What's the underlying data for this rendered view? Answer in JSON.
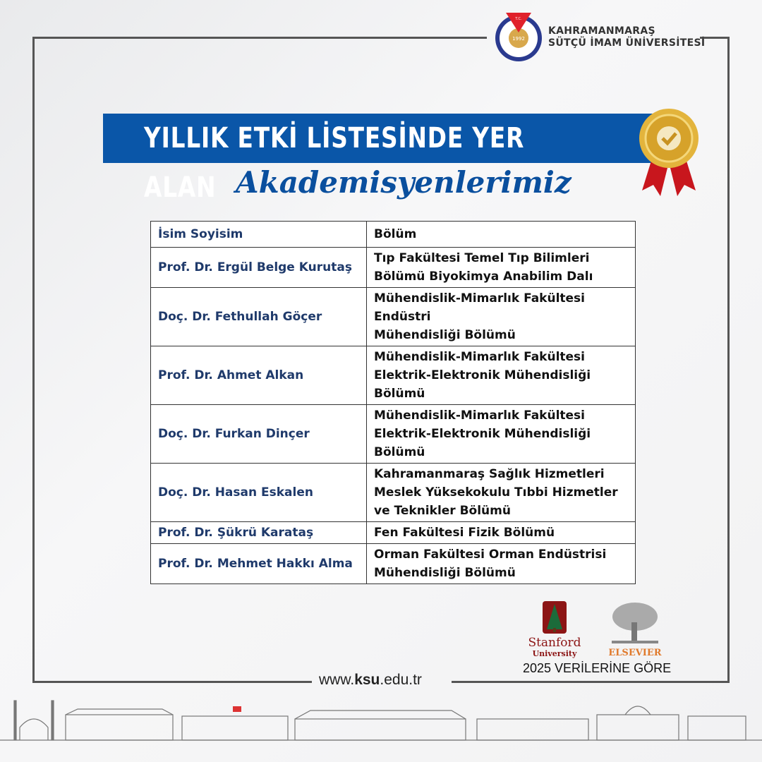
{
  "header": {
    "logo_text": [
      "T.C.",
      "1992",
      "KAHRAMANMARAŞ SÜTÇÜ İMAM ÜNİVERSİTESİ"
    ],
    "university_line1": "KAHRAMANMARAŞ",
    "university_line2": "SÜTÇÜ İMAM ÜNİVERSİTESİ"
  },
  "banner": {
    "title": "YILLIK ETKİ LİSTESİNDE YER ALAN",
    "subtitle": "Akademisyenlerimiz",
    "color": "#0a56a8"
  },
  "table": {
    "headers": [
      "İsim Soyisim",
      "Bölüm"
    ],
    "rows": [
      {
        "name": "Prof. Dr. Ergül Belge Kurutaş",
        "dept": [
          "Tıp Fakültesi Temel Tıp Bilimleri",
          "Bölümü Biyokimya Anabilim Dalı"
        ]
      },
      {
        "name": "Doç. Dr. Fethullah Göçer",
        "dept": [
          "Mühendislik-Mimarlık Fakültesi",
          "Endüstri",
          "Mühendisliği Bölümü"
        ]
      },
      {
        "name": "Prof. Dr. Ahmet Alkan",
        "dept": [
          "Mühendislik-Mimarlık Fakültesi",
          "Elektrik-Elektronik Mühendisliği",
          "Bölümü"
        ]
      },
      {
        "name": "Doç. Dr. Furkan Dinçer",
        "dept": [
          "Mühendislik-Mimarlık Fakültesi",
          "Elektrik-Elektronik Mühendisliği",
          "Bölümü"
        ]
      },
      {
        "name": "Doç. Dr. Hasan Eskalen",
        "dept": [
          "Kahramanmaraş Sağlık Hizmetleri",
          "Meslek Yüksekokulu Tıbbi Hizmetler",
          "ve Teknikler Bölümü"
        ]
      },
      {
        "name": "Prof. Dr. Şükrü Karataş",
        "dept": [
          "Fen Fakültesi Fizik Bölümü"
        ]
      },
      {
        "name": "Prof. Dr. Mehmet Hakkı Alma",
        "dept": [
          "Orman Fakültesi Orman Endüstrisi",
          "Mühendisliği Bölümü"
        ]
      }
    ]
  },
  "footer": {
    "stanford_line1": "Stanford",
    "stanford_line2": "University",
    "elsevier": "ELSEVIER",
    "data_note": "2025 VERİLERİNE GÖRE",
    "url_prefix": "www.",
    "url_bold": "ksu",
    "url_suffix": ".edu.tr"
  }
}
